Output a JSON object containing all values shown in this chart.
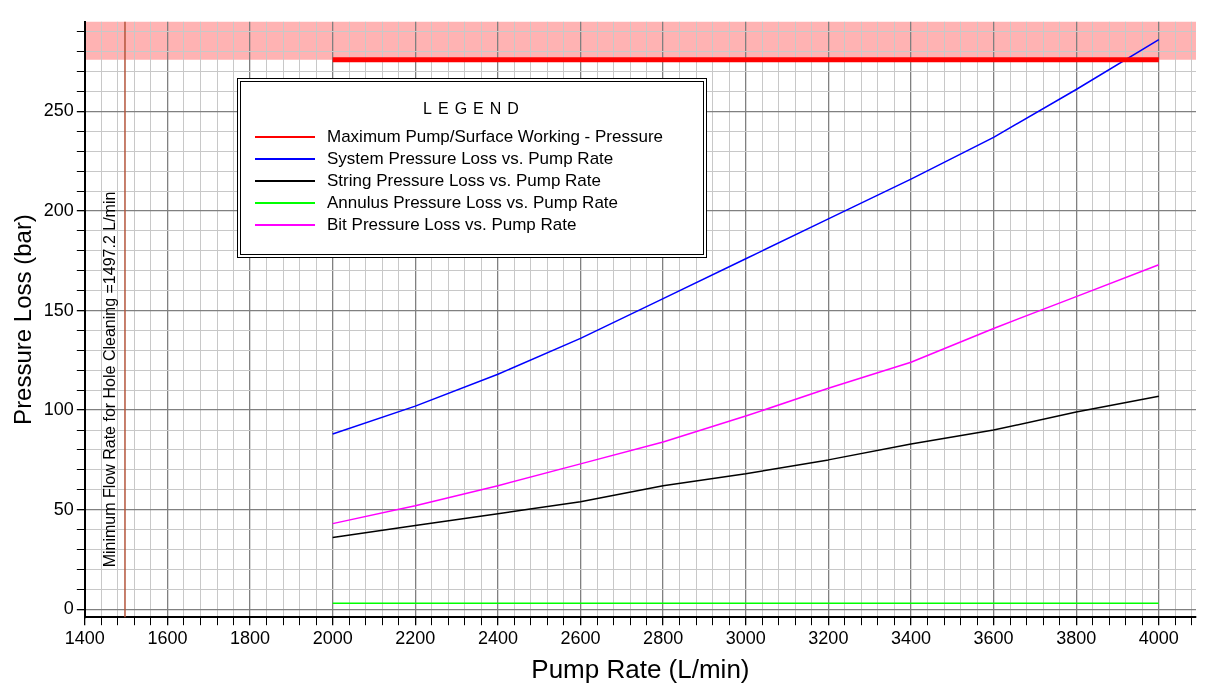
{
  "chart_data": {
    "type": "line",
    "xlabel": "Pump Rate (L/min)",
    "ylabel": "Pressure Loss (bar)",
    "legend_title": "LEGEND",
    "legend": "top left",
    "grid": true,
    "marker": "none",
    "line_style": "solid",
    "xlim": [
      1400,
      4090
    ],
    "ylim": [
      -4,
      295
    ],
    "xticks": [
      1400,
      {
        "value": 1440,
        "label": null
      },
      {
        "value": 1480,
        "label": null
      },
      {
        "value": 1520,
        "label": null
      },
      {
        "value": 1560,
        "label": null
      },
      1600,
      {
        "value": 1640,
        "label": null
      },
      {
        "value": 1680,
        "label": null
      },
      {
        "value": 1720,
        "label": null
      },
      {
        "value": 1760,
        "label": null
      },
      1800,
      {
        "value": 1840,
        "label": null
      },
      {
        "value": 1880,
        "label": null
      },
      {
        "value": 1920,
        "label": null
      },
      {
        "value": 1960,
        "label": null
      },
      2000,
      {
        "value": 2040,
        "label": null
      },
      {
        "value": 2080,
        "label": null
      },
      {
        "value": 2120,
        "label": null
      },
      {
        "value": 2160,
        "label": null
      },
      2200,
      {
        "value": 2240,
        "label": null
      },
      {
        "value": 2280,
        "label": null
      },
      {
        "value": 2320,
        "label": null
      },
      {
        "value": 2360,
        "label": null
      },
      2400,
      {
        "value": 2440,
        "label": null
      },
      {
        "value": 2480,
        "label": null
      },
      {
        "value": 2520,
        "label": null
      },
      {
        "value": 2560,
        "label": null
      },
      2600,
      {
        "value": 2640,
        "label": null
      },
      {
        "value": 2680,
        "label": null
      },
      {
        "value": 2720,
        "label": null
      },
      {
        "value": 2760,
        "label": null
      },
      2800,
      {
        "value": 2840,
        "label": null
      },
      {
        "value": 2880,
        "label": null
      },
      {
        "value": 2920,
        "label": null
      },
      {
        "value": 2960,
        "label": null
      },
      3000,
      {
        "value": 3040,
        "label": null
      },
      {
        "value": 3080,
        "label": null
      },
      {
        "value": 3120,
        "label": null
      },
      {
        "value": 3160,
        "label": null
      },
      3200,
      {
        "value": 3240,
        "label": null
      },
      {
        "value": 3280,
        "label": null
      },
      {
        "value": 3320,
        "label": null
      },
      {
        "value": 3360,
        "label": null
      },
      3400,
      {
        "value": 3440,
        "label": null
      },
      {
        "value": 3480,
        "label": null
      },
      {
        "value": 3520,
        "label": null
      },
      {
        "value": 3560,
        "label": null
      },
      3600,
      {
        "value": 3640,
        "label": null
      },
      {
        "value": 3680,
        "label": null
      },
      {
        "value": 3720,
        "label": null
      },
      {
        "value": 3760,
        "label": null
      },
      3800,
      {
        "value": 3840,
        "label": null
      },
      {
        "value": 3880,
        "label": null
      },
      {
        "value": 3920,
        "label": null
      },
      {
        "value": 3960,
        "label": null
      },
      4000,
      {
        "value": 4040,
        "label": null
      },
      {
        "value": 4080,
        "label": null
      }
    ],
    "yticks": [
      0,
      {
        "value": 10,
        "label": null
      },
      {
        "value": 20,
        "label": null
      },
      {
        "value": 30,
        "label": null
      },
      {
        "value": 40,
        "label": null
      },
      50,
      {
        "value": 60,
        "label": null
      },
      {
        "value": 70,
        "label": null
      },
      {
        "value": 80,
        "label": null
      },
      {
        "value": 90,
        "label": null
      },
      100,
      {
        "value": 110,
        "label": null
      },
      {
        "value": 120,
        "label": null
      },
      {
        "value": 130,
        "label": null
      },
      {
        "value": 140,
        "label": null
      },
      150,
      {
        "value": 160,
        "label": null
      },
      {
        "value": 170,
        "label": null
      },
      {
        "value": 180,
        "label": null
      },
      {
        "value": 190,
        "label": null
      },
      200,
      {
        "value": 210,
        "label": null
      },
      {
        "value": 220,
        "label": null
      },
      {
        "value": 230,
        "label": null
      },
      {
        "value": 240,
        "label": null
      },
      250,
      {
        "value": 260,
        "label": null
      },
      {
        "value": 270,
        "label": null
      },
      {
        "value": 280,
        "label": null
      },
      {
        "value": 290,
        "label": null
      }
    ],
    "ref_lines": [
      {
        "axis": "x",
        "value": 1497.2,
        "label": "Minimum Flow Rate for Hole Cleaning =1497.2 L/min",
        "color": "#b4553c"
      }
    ],
    "bands": [
      {
        "axis": "y",
        "from": 276,
        "to": 295,
        "color": "#ffb3b3"
      }
    ],
    "series": [
      {
        "name": "Maximum Pump/Surface Working - Pressure",
        "color": "#ff0000",
        "x": [
          2000,
          4000
        ],
        "values": [
          276,
          276
        ]
      },
      {
        "name": "System Pressure Loss vs. Pump Rate",
        "color": "#0000ff",
        "x": [
          2000,
          2200,
          2400,
          2600,
          2800,
          3000,
          3200,
          3400,
          3600,
          3800,
          4000
        ],
        "values": [
          88,
          102,
          118,
          136,
          156,
          176,
          196,
          216,
          237,
          261,
          286
        ]
      },
      {
        "name": "String Pressure Loss vs. Pump Rate",
        "color": "#000000",
        "x": [
          2000,
          2200,
          2400,
          2600,
          2800,
          3000,
          3200,
          3400,
          3600,
          3800,
          4000
        ],
        "values": [
          36,
          42,
          48,
          54,
          62,
          68,
          75,
          83,
          90,
          99,
          107
        ]
      },
      {
        "name": "Annulus Pressure Loss vs. Pump Rate",
        "color": "#00ff00",
        "x": [
          2000,
          4000
        ],
        "values": [
          3,
          3
        ]
      },
      {
        "name": "Bit Pressure Loss vs. Pump Rate",
        "color": "#ff00ff",
        "x": [
          2000,
          2200,
          2400,
          2600,
          2800,
          3000,
          3200,
          3400,
          3600,
          3800,
          4000
        ],
        "values": [
          43,
          52,
          62,
          73,
          84,
          97,
          111,
          124,
          141,
          157,
          173
        ]
      }
    ]
  }
}
